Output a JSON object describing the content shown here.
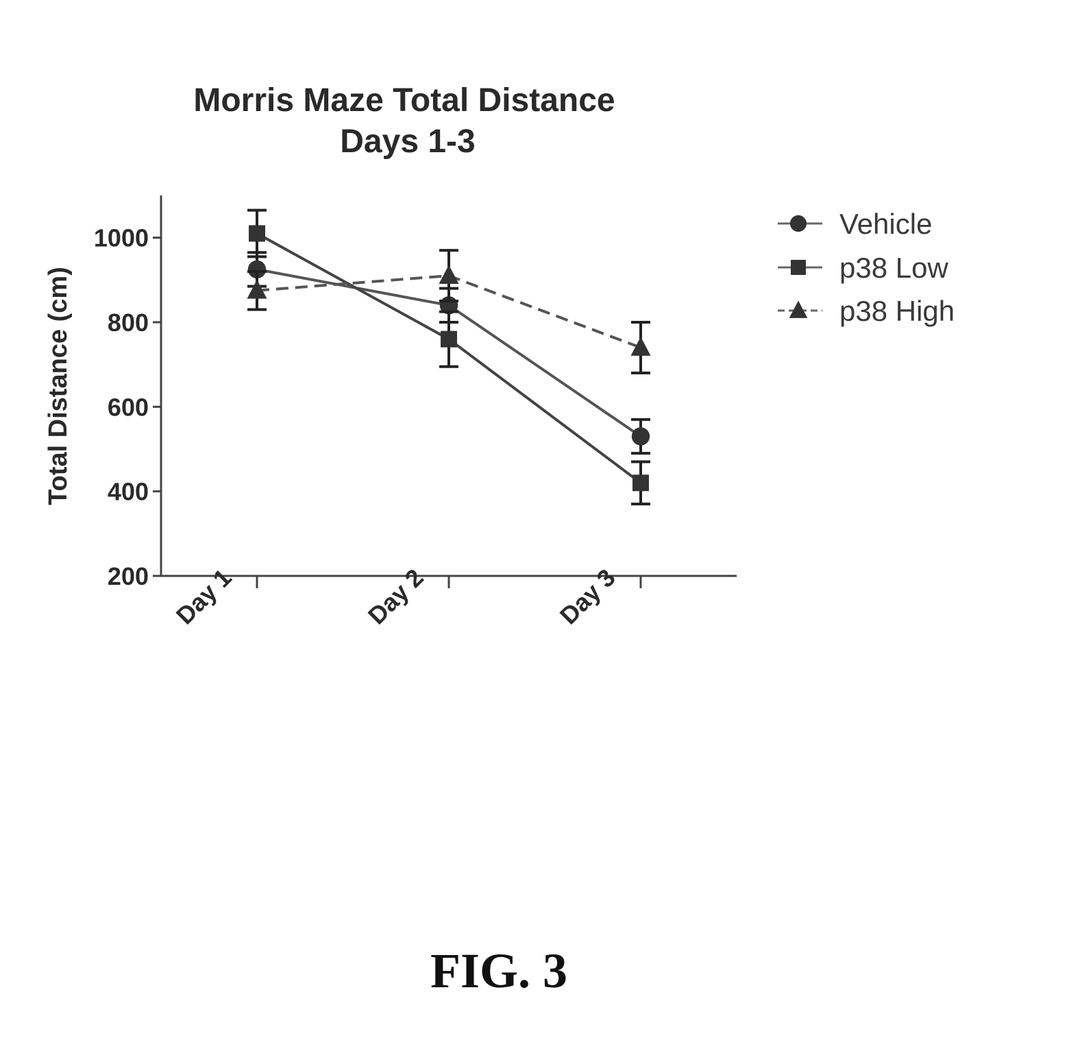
{
  "chart_data": {
    "type": "line",
    "title": [
      "Morris  Maze Total Distance",
      "Days 1-3"
    ],
    "ylabel": "Total Distance (cm)",
    "xlabel": "",
    "categories": [
      "Day 1",
      "Day 2",
      "Day 3"
    ],
    "ylim": [
      200,
      1100
    ],
    "yticks": [
      200,
      400,
      600,
      800,
      1000
    ],
    "grid": false,
    "legend_position": "right",
    "series": [
      {
        "name": "Vehicle",
        "marker": "circle",
        "line": "solid",
        "values": [
          925,
          840,
          530
        ],
        "errors": [
          40,
          40,
          40
        ],
        "color": "#555555"
      },
      {
        "name": "p38 Low",
        "marker": "square",
        "line": "solid",
        "values": [
          1010,
          760,
          420
        ],
        "errors": [
          55,
          65,
          50
        ],
        "color": "#444444"
      },
      {
        "name": "p38 High",
        "marker": "triangle",
        "line": "dashed",
        "values": [
          875,
          910,
          740
        ],
        "errors": [
          45,
          60,
          60
        ],
        "color": "#555555"
      }
    ]
  },
  "figure_label": "FIG. 3"
}
